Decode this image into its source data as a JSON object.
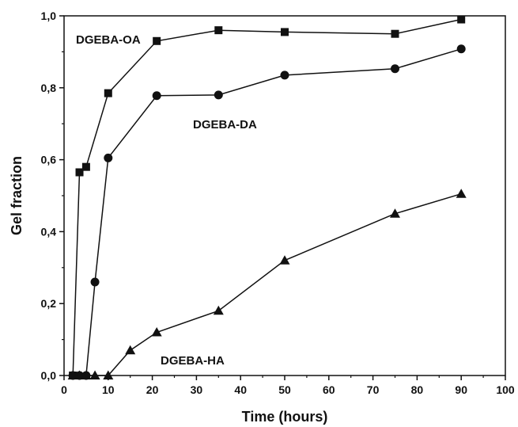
{
  "chart_data": {
    "type": "line",
    "xlabel": "Time (hours)",
    "ylabel": "Gel fraction",
    "xlim": [
      0,
      100
    ],
    "ylim": [
      0.0,
      1.0
    ],
    "x_ticks": [
      "0",
      "10",
      "20",
      "30",
      "40",
      "50",
      "60",
      "70",
      "80",
      "90",
      "100"
    ],
    "y_ticks": [
      "0,0",
      "0,2",
      "0,4",
      "0,6",
      "0,8",
      "1,0"
    ],
    "grid": false,
    "legend": "none (series labeled directly on plot)",
    "series": [
      {
        "name": "DGEBA-OA",
        "marker": "square",
        "x": [
          2,
          3.5,
          5,
          10,
          21,
          35,
          50,
          75,
          90
        ],
        "y": [
          0.0,
          0.565,
          0.58,
          0.785,
          0.93,
          0.96,
          0.955,
          0.95,
          0.99
        ]
      },
      {
        "name": "DGEBA-DA",
        "marker": "circle",
        "x": [
          2,
          3.5,
          5,
          7,
          10,
          21,
          35,
          50,
          75,
          90
        ],
        "y": [
          0.0,
          0.0,
          0.0,
          0.26,
          0.605,
          0.778,
          0.78,
          0.835,
          0.853,
          0.908
        ]
      },
      {
        "name": "DGEBA-HA",
        "marker": "triangle",
        "x": [
          2,
          3.5,
          5,
          7,
          10,
          15,
          21,
          35,
          50,
          75,
          90
        ],
        "y": [
          0.0,
          0.0,
          0.0,
          0.0,
          0.0,
          0.07,
          0.12,
          0.18,
          0.32,
          0.45,
          0.505
        ]
      }
    ],
    "annotations": [
      "DGEBA-OA",
      "DGEBA-DA",
      "DGEBA-HA"
    ]
  }
}
